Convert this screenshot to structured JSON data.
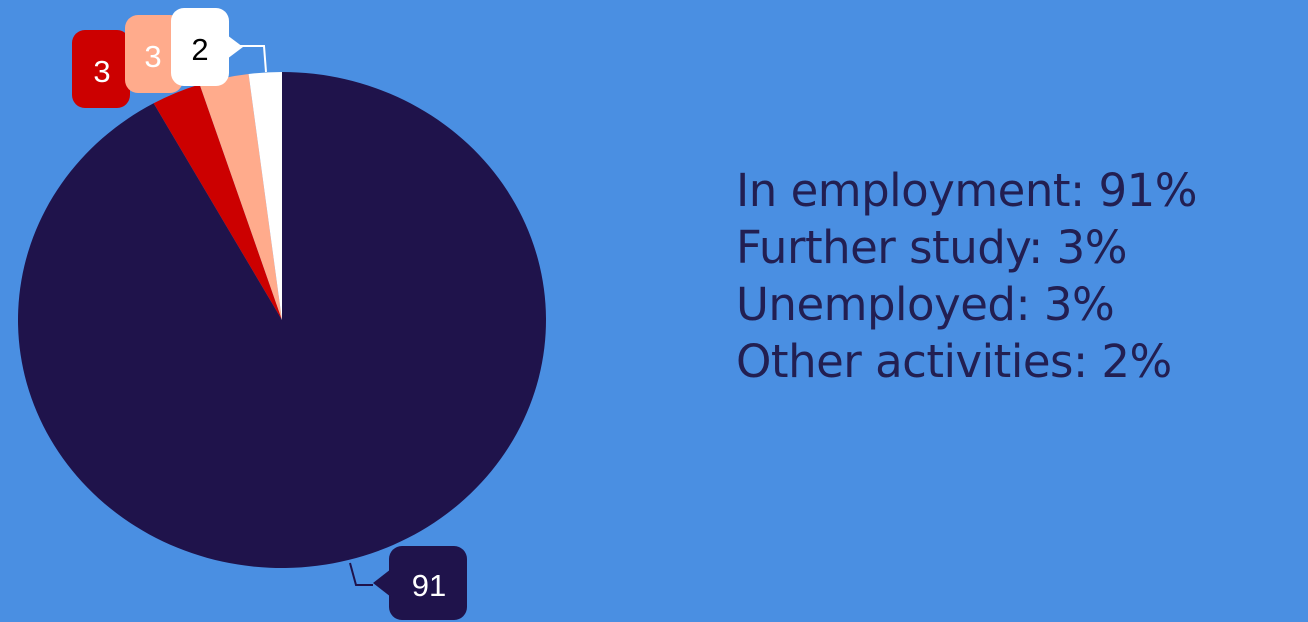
{
  "colors": {
    "background": "#4a8fe2",
    "text": "#221f52"
  },
  "chart_data": {
    "type": "pie",
    "categories": [
      "In employment",
      "Further study",
      "Unemployed",
      "Other activities"
    ],
    "values": [
      91,
      3,
      3,
      2
    ],
    "slice_colors": [
      "#1f134b",
      "#cc0000",
      "#ffab8c",
      "#ffffff"
    ],
    "label_text_colors": [
      "#ffffff",
      "#ffffff",
      "#ffffff",
      "#000000"
    ],
    "data_labels": [
      "91",
      "3",
      "3",
      "2"
    ],
    "legend": [
      "In employment: 91%",
      "Further study: 3%",
      "Unemployed: 3%",
      "Other activities: 2%"
    ],
    "legend_position": "right",
    "title": ""
  }
}
